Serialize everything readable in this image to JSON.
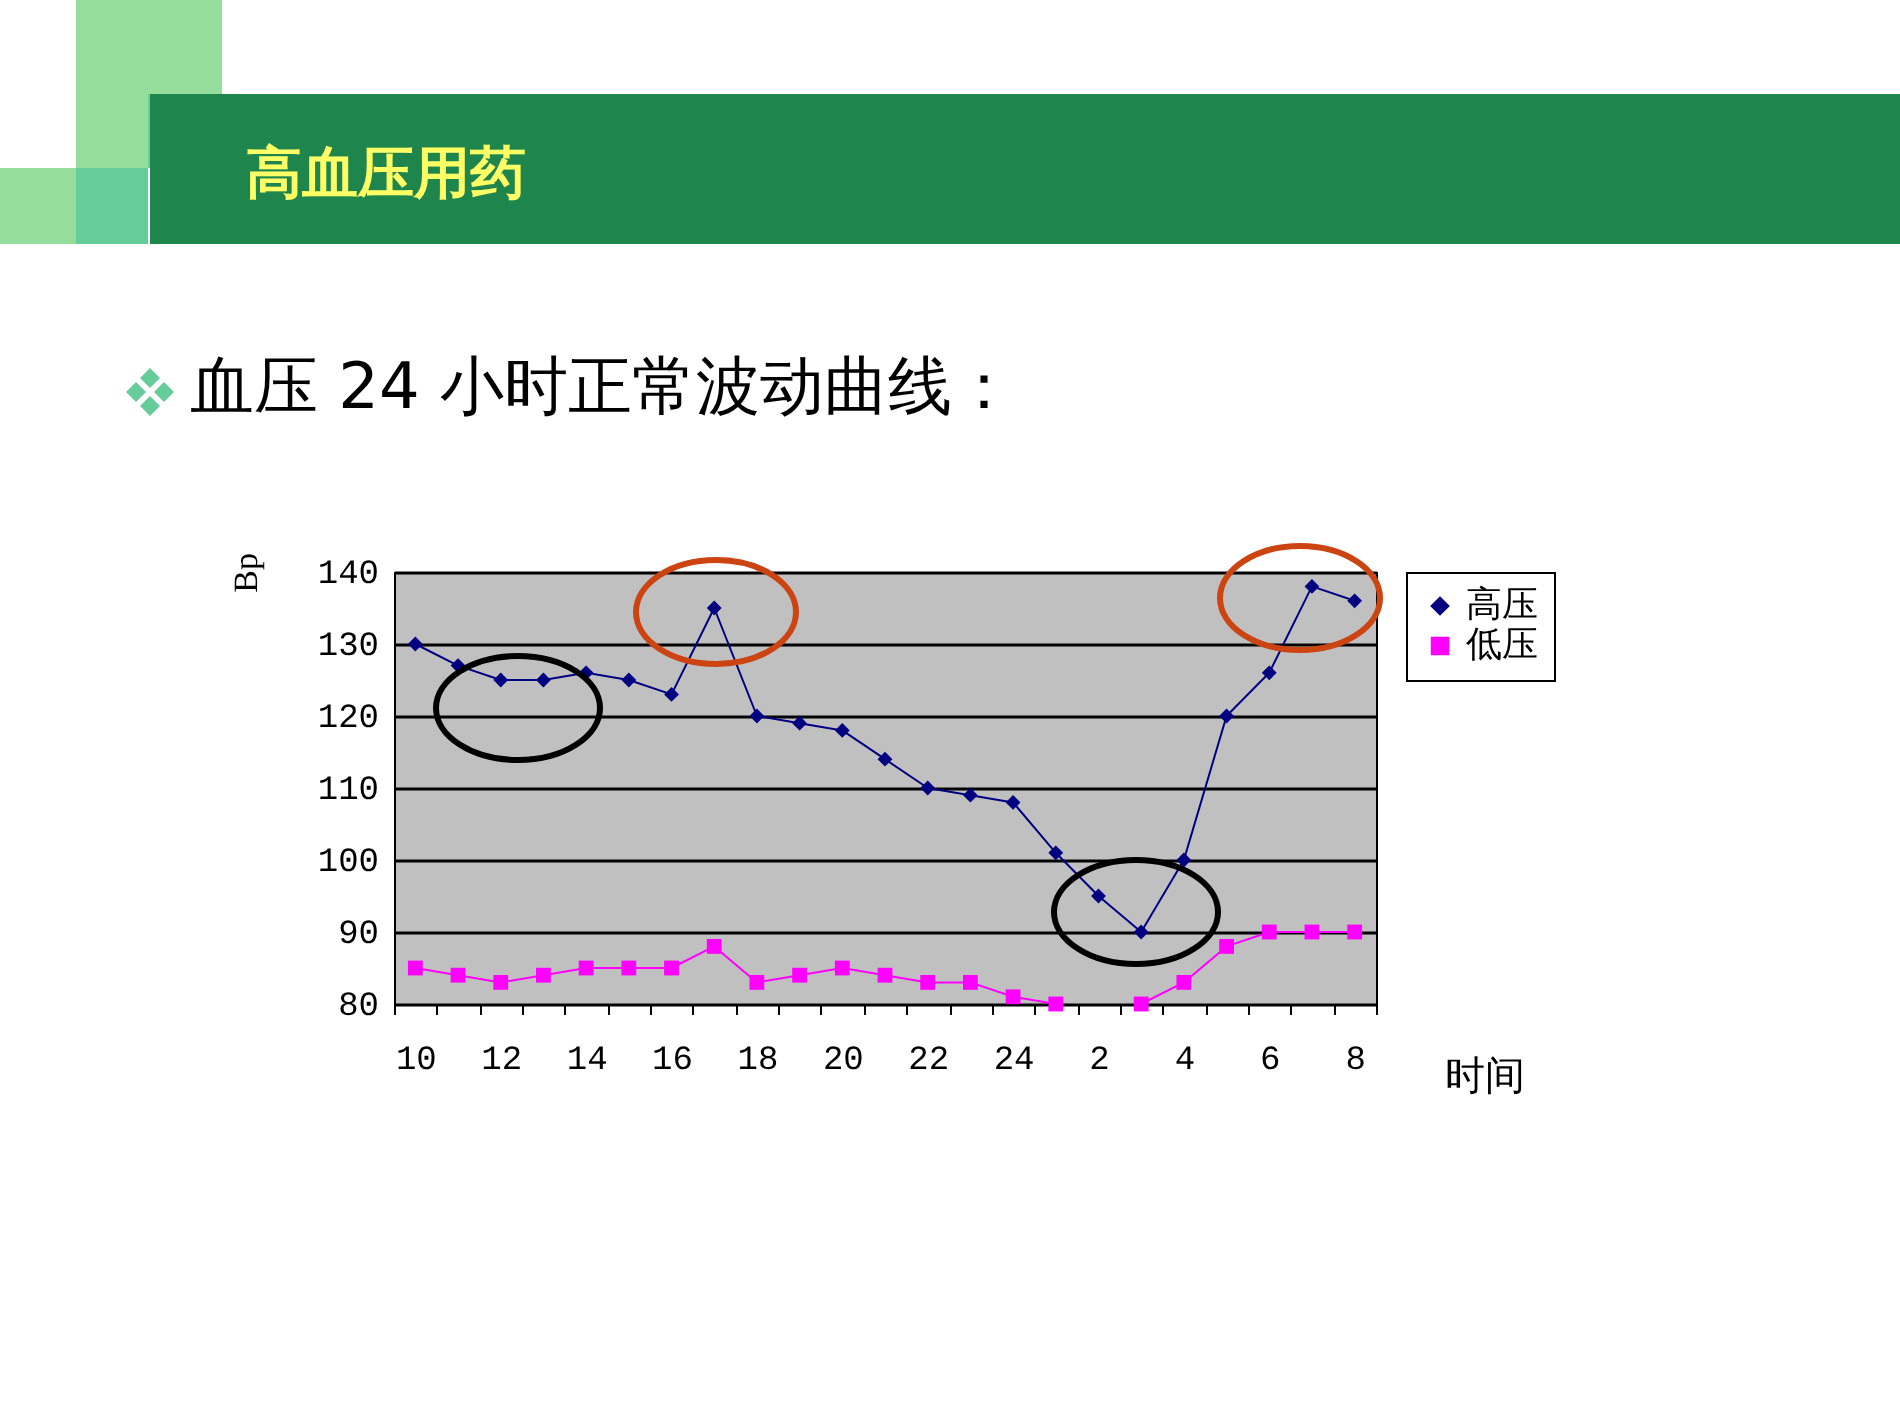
{
  "chart_data": {
    "type": "line",
    "title": "高血压用药",
    "subtitle": "血压 24 小时正常波动曲线：",
    "xlabel": "时间",
    "ylabel": "Bp",
    "categories": [
      "10",
      null,
      "12",
      null,
      "14",
      null,
      "16",
      null,
      "18",
      null,
      "20",
      null,
      "22",
      null,
      "24",
      null,
      "2",
      null,
      "4",
      null,
      "6",
      null,
      "8"
    ],
    "series": [
      {
        "name": "高压",
        "color": "#000080",
        "marker": "diamond",
        "values": [
          130,
          127,
          125,
          125,
          126,
          125,
          123,
          135,
          120,
          119,
          118,
          114,
          110,
          109,
          108,
          101,
          95,
          90,
          100,
          120,
          126,
          138,
          136
        ]
      },
      {
        "name": "低压",
        "color": "#ff00ff",
        "marker": "square",
        "values": [
          85,
          84,
          83,
          84,
          85,
          85,
          85,
          88,
          83,
          84,
          85,
          84,
          83,
          83,
          81,
          80,
          null,
          80,
          83,
          88,
          90,
          90,
          90
        ]
      }
    ],
    "ylim": [
      80,
      140
    ],
    "yticks": [
      80,
      90,
      100,
      110,
      120,
      130,
      140
    ],
    "grid": "y",
    "legend": "right"
  }
}
